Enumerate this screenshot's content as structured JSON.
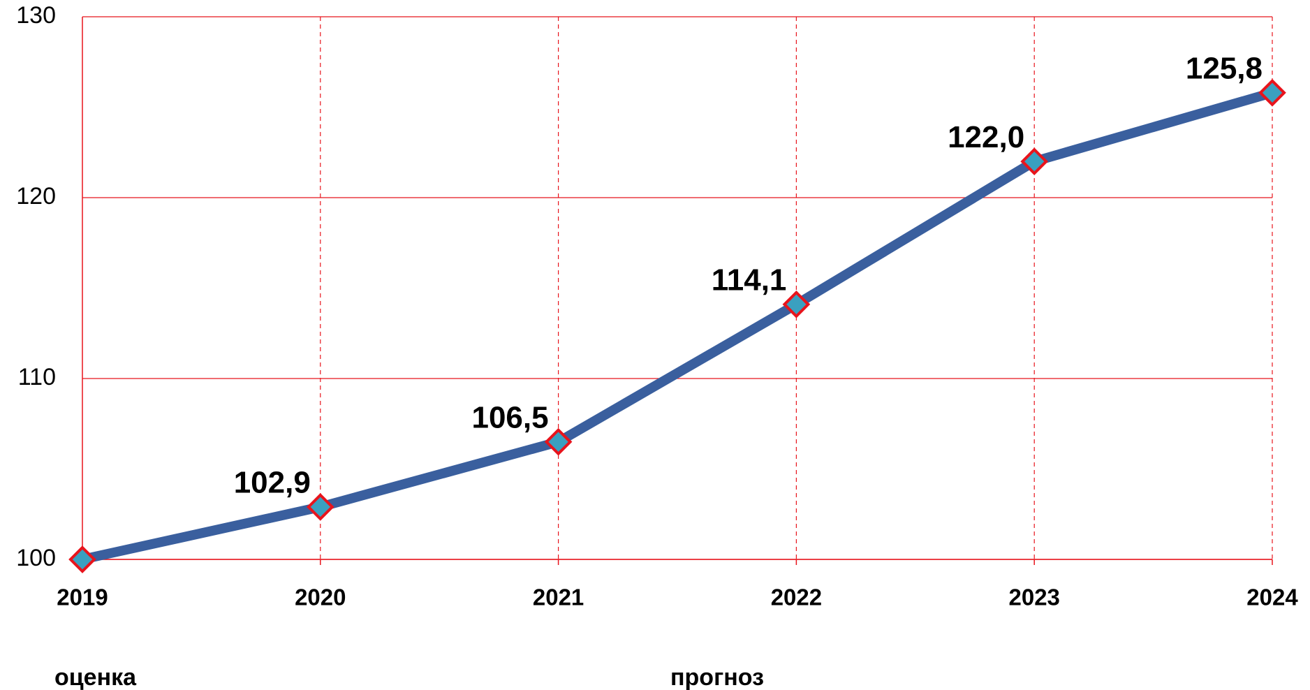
{
  "chart_data": {
    "type": "line",
    "categories": [
      "2019",
      "2020",
      "2021",
      "2022",
      "2023",
      "2024"
    ],
    "series": [
      {
        "name": null,
        "color": "#3a5f9e",
        "marker_fill": "#3aa0c0",
        "marker_stroke": "#e8141c",
        "values": [
          100,
          102.9,
          106.5,
          114.1,
          122.0,
          125.8
        ],
        "value_labels": [
          null,
          "102,9",
          "106,5",
          "114,1",
          "122,0",
          "125,8"
        ]
      }
    ],
    "ylim": [
      100,
      130
    ],
    "yticks": [
      100,
      110,
      120,
      130
    ],
    "grid": true,
    "grid_color": "#e8141c",
    "annotations": [
      "оценка",
      "прогноз"
    ]
  }
}
